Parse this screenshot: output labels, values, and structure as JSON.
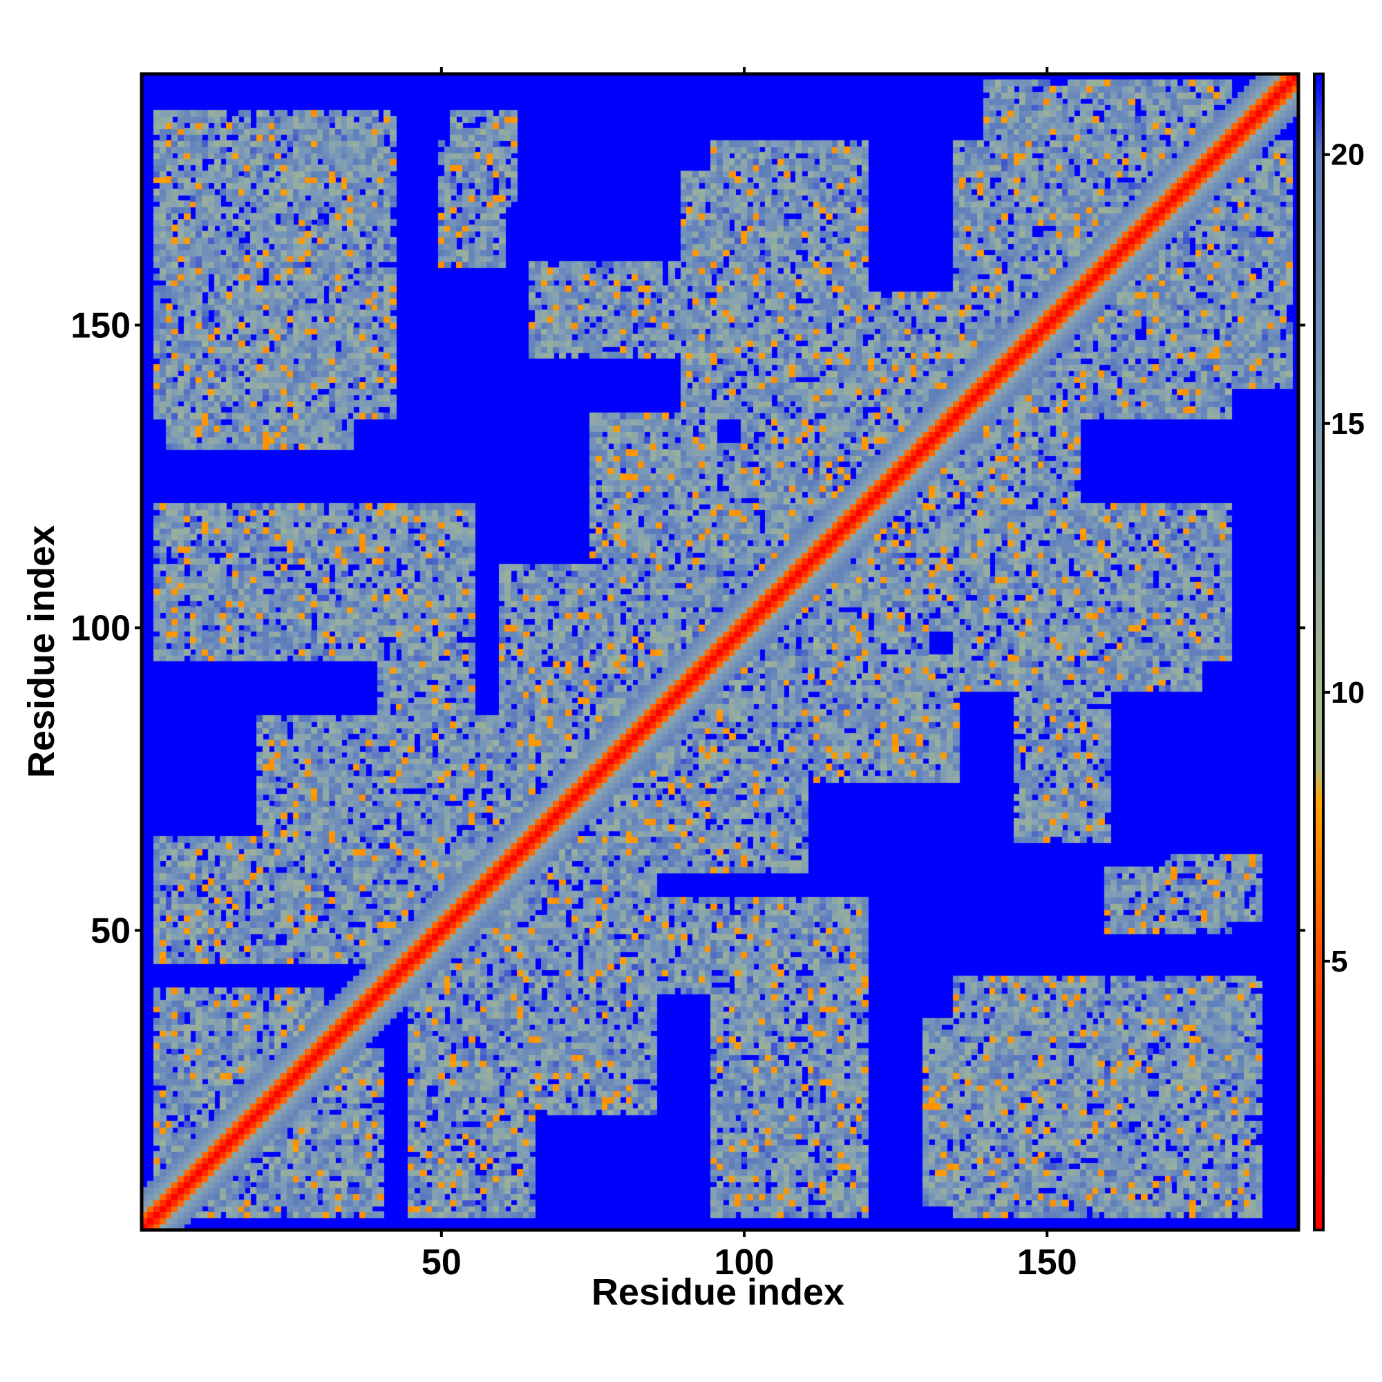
{
  "chart_data": {
    "type": "heatmap",
    "title": "",
    "xlabel": "Residue index",
    "ylabel": "Residue index",
    "xlim": [
      1,
      191
    ],
    "ylim": [
      1,
      191
    ],
    "x_ticks": [
      50,
      100,
      150
    ],
    "y_ticks": [
      50,
      100,
      150
    ],
    "colorbar": {
      "ticks": [
        5,
        10,
        15,
        20
      ],
      "range": [
        0,
        21.5
      ],
      "colormap": [
        {
          "value": 0,
          "color": "#ff0000"
        },
        {
          "value": 5,
          "color": "#ff4a00"
        },
        {
          "value": 8,
          "color": "#ffa500"
        },
        {
          "value": 8.6,
          "color": "#aebc8a"
        },
        {
          "value": 10,
          "color": "#a7b98e"
        },
        {
          "value": 15,
          "color": "#7f9db7"
        },
        {
          "value": 20,
          "color": "#5b7bbd"
        },
        {
          "value": 21.5,
          "color": "#0000ff"
        }
      ]
    },
    "grid": false,
    "description_of_values": "Pairwise residue distance matrix (Å scale 0–21.5); values above ~21 shown as saturated blue background",
    "diagonal_band": {
      "core": 0,
      "width_residues": 6
    },
    "contact_blocks": [
      {
        "x": [
          3,
          42
        ],
        "y": [
          135,
          185
        ]
      },
      {
        "x": [
          52,
          62
        ],
        "y": [
          170,
          185
        ]
      },
      {
        "x": [
          65,
          90
        ],
        "y": [
          145,
          160
        ]
      },
      {
        "x": [
          95,
          120
        ],
        "y": [
          145,
          180
        ]
      },
      {
        "x": [
          135,
          190
        ],
        "y": [
          140,
          180
        ]
      },
      {
        "x": [
          75,
          95
        ],
        "y": [
          120,
          135
        ]
      },
      {
        "x": [
          100,
          155
        ],
        "y": [
          110,
          145
        ]
      },
      {
        "x": [
          3,
          55
        ],
        "y": [
          95,
          120
        ]
      },
      {
        "x": [
          60,
          130
        ],
        "y": [
          75,
          110
        ]
      },
      {
        "x": [
          135,
          175
        ],
        "y": [
          90,
          120
        ]
      },
      {
        "x": [
          115,
          130
        ],
        "y": [
          80,
          95
        ]
      },
      {
        "x": [
          3,
          15
        ],
        "y": [
          50,
          65
        ]
      },
      {
        "x": [
          20,
          65
        ],
        "y": [
          45,
          85
        ]
      },
      {
        "x": [
          70,
          120
        ],
        "y": [
          40,
          55
        ]
      },
      {
        "x": [
          95,
          120
        ],
        "y": [
          5,
          50
        ]
      },
      {
        "x": [
          130,
          150
        ],
        "y": [
          5,
          35
        ]
      },
      {
        "x": [
          155,
          185
        ],
        "y": [
          15,
          40
        ]
      },
      {
        "x": [
          45,
          65
        ],
        "y": [
          3,
          25
        ]
      },
      {
        "x": [
          3,
          30
        ],
        "y": [
          3,
          40
        ]
      },
      {
        "x": [
          160,
          180
        ],
        "y": [
          50,
          60
        ]
      }
    ]
  }
}
